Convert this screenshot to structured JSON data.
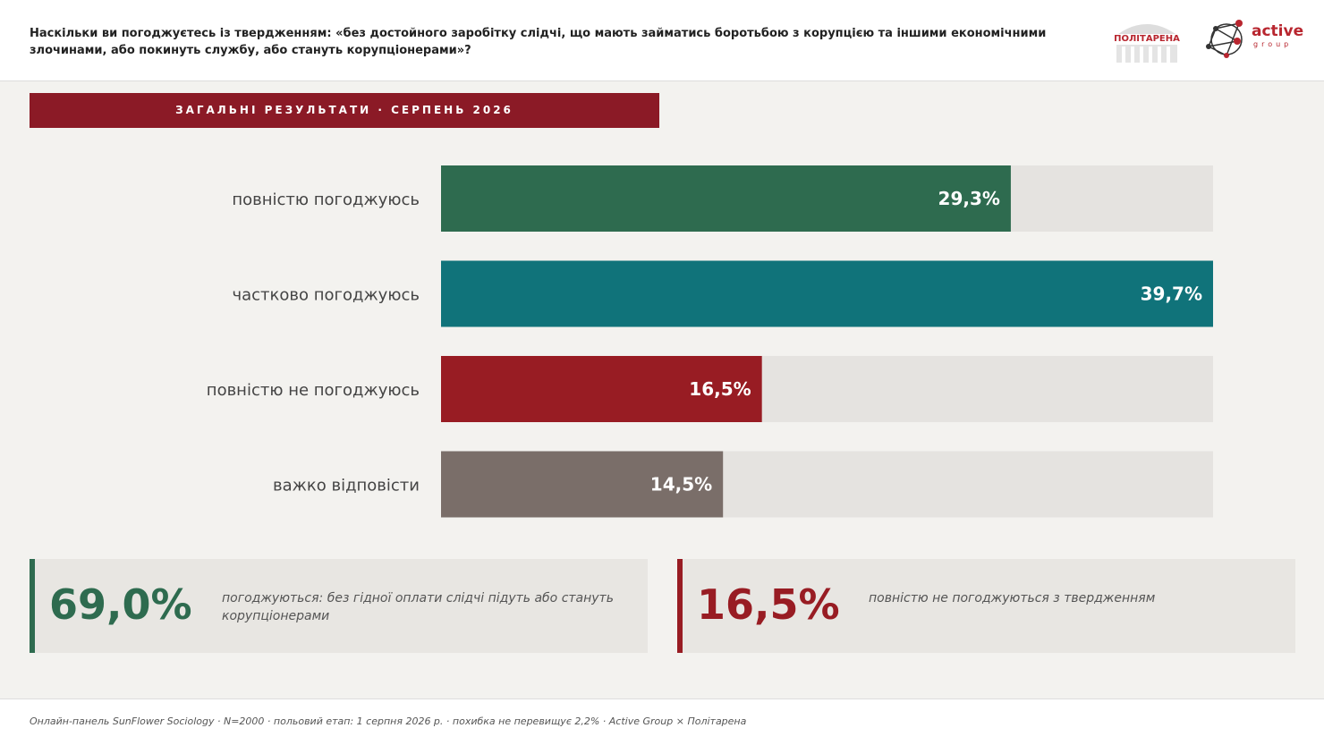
{
  "header": {
    "question": "Наскільки ви погоджуєтесь із твердженням: «без достойного заробітку слідчі, що мають займатись боротьбою з корупцією та іншими економічними злочинами, або покинуть службу, або стануть корупціонерами»?",
    "logo_left": "ПОЛІТАРЕНА",
    "logo_right": "active",
    "logo_right_sub": "group"
  },
  "banner": "ЗАГАЛЬНІ РЕЗУЛЬТАТИ · СЕРПЕНЬ 2026",
  "chart_data": {
    "type": "hbar",
    "categories": [
      "повністю погоджуюсь",
      "частково погоджуюсь",
      "повністю не погоджуюсь",
      "важко відповісти"
    ],
    "values": [
      29.3,
      39.7,
      16.5,
      14.5
    ],
    "value_labels": [
      "29,3%",
      "39,7%",
      "16,5%",
      "14,5%"
    ],
    "colors": [
      "#2e6b4f",
      "#10737a",
      "#981c23",
      "#7a6e69"
    ]
  },
  "summary": [
    {
      "value": "69,0%",
      "text": "погоджуються: без гідної оплати слідчі підуть або стануть корупціонерами",
      "color": "#2e6b4f"
    },
    {
      "value": "16,5%",
      "text": "повністю не погоджуються з твердженням",
      "color": "#981c23"
    }
  ],
  "footer": "Онлайн-панель SunFlower Sociology · N=2000 · польовий етап: 1 серпня 2026 р. · похибка не перевищує 2,2% · Active Group × Політарена"
}
